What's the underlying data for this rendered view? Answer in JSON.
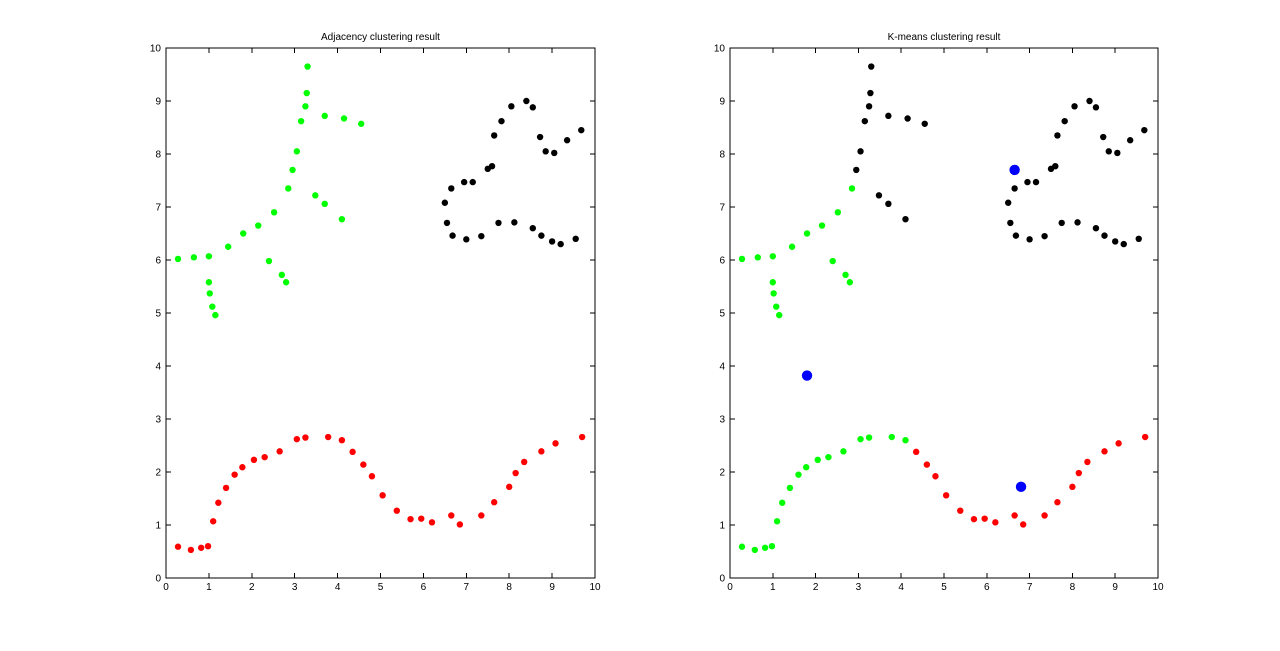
{
  "chart_data": [
    {
      "type": "scatter",
      "title": "Adjacency clustering result",
      "xlabel": "",
      "ylabel": "",
      "xlim": [
        0,
        10
      ],
      "ylim": [
        0,
        10
      ],
      "xticks": [
        0,
        1,
        2,
        3,
        4,
        5,
        6,
        7,
        8,
        9,
        10
      ],
      "yticks": [
        0,
        1,
        2,
        3,
        4,
        5,
        6,
        7,
        8,
        9,
        10
      ],
      "grid": false,
      "series": [
        {
          "color": "#00ff00",
          "marker_size": "small",
          "points": [
            [
              0.28,
              6.02
            ],
            [
              0.65,
              6.05
            ],
            [
              1.0,
              6.07
            ],
            [
              1.45,
              6.25
            ],
            [
              1.8,
              6.5
            ],
            [
              2.15,
              6.65
            ],
            [
              2.52,
              6.9
            ],
            [
              2.85,
              7.35
            ],
            [
              2.95,
              7.7
            ],
            [
              3.05,
              8.05
            ],
            [
              3.15,
              8.62
            ],
            [
              3.25,
              8.9
            ],
            [
              3.28,
              9.15
            ],
            [
              3.3,
              9.65
            ],
            [
              3.7,
              8.72
            ],
            [
              4.15,
              8.67
            ],
            [
              4.55,
              8.57
            ],
            [
              3.48,
              7.22
            ],
            [
              3.7,
              7.06
            ],
            [
              4.1,
              6.77
            ],
            [
              2.4,
              5.98
            ],
            [
              2.7,
              5.72
            ],
            [
              2.8,
              5.58
            ],
            [
              1.0,
              5.58
            ],
            [
              1.02,
              5.37
            ],
            [
              1.08,
              5.12
            ],
            [
              1.15,
              4.96
            ]
          ]
        },
        {
          "color": "#ff0000",
          "marker_size": "small",
          "points": [
            [
              0.28,
              0.59
            ],
            [
              0.58,
              0.53
            ],
            [
              0.82,
              0.57
            ],
            [
              0.98,
              0.6
            ],
            [
              1.1,
              1.07
            ],
            [
              1.22,
              1.42
            ],
            [
              1.4,
              1.7
            ],
            [
              1.6,
              1.95
            ],
            [
              1.78,
              2.09
            ],
            [
              2.05,
              2.23
            ],
            [
              2.3,
              2.28
            ],
            [
              2.65,
              2.39
            ],
            [
              3.05,
              2.62
            ],
            [
              3.25,
              2.65
            ],
            [
              3.78,
              2.66
            ],
            [
              4.1,
              2.6
            ],
            [
              4.35,
              2.38
            ],
            [
              4.6,
              2.14
            ],
            [
              4.8,
              1.92
            ],
            [
              5.05,
              1.56
            ],
            [
              5.38,
              1.27
            ],
            [
              5.7,
              1.11
            ],
            [
              5.95,
              1.12
            ],
            [
              6.2,
              1.05
            ],
            [
              6.65,
              1.18
            ],
            [
              6.85,
              1.01
            ],
            [
              7.35,
              1.18
            ],
            [
              7.65,
              1.43
            ],
            [
              8.0,
              1.72
            ],
            [
              8.15,
              1.98
            ],
            [
              8.35,
              2.19
            ],
            [
              8.75,
              2.39
            ],
            [
              9.08,
              2.54
            ],
            [
              9.7,
              2.66
            ]
          ]
        },
        {
          "color": "#000000",
          "marker_size": "small",
          "points": [
            [
              6.5,
              7.08
            ],
            [
              6.65,
              7.35
            ],
            [
              6.95,
              7.47
            ],
            [
              7.15,
              7.47
            ],
            [
              7.5,
              7.72
            ],
            [
              7.6,
              7.77
            ],
            [
              7.65,
              8.35
            ],
            [
              7.82,
              8.62
            ],
            [
              8.05,
              8.9
            ],
            [
              8.4,
              9.0
            ],
            [
              8.55,
              8.88
            ],
            [
              8.72,
              8.32
            ],
            [
              8.85,
              8.05
            ],
            [
              9.05,
              8.02
            ],
            [
              9.35,
              8.26
            ],
            [
              9.68,
              8.45
            ],
            [
              6.55,
              6.7
            ],
            [
              6.68,
              6.46
            ],
            [
              7.0,
              6.39
            ],
            [
              7.35,
              6.45
            ],
            [
              7.75,
              6.7
            ],
            [
              8.12,
              6.71
            ],
            [
              8.55,
              6.6
            ],
            [
              8.75,
              6.46
            ],
            [
              9.0,
              6.35
            ],
            [
              9.2,
              6.3
            ],
            [
              9.55,
              6.4
            ]
          ]
        }
      ]
    },
    {
      "type": "scatter",
      "title": "K-means clustering result",
      "xlabel": "",
      "ylabel": "",
      "xlim": [
        0,
        10
      ],
      "ylim": [
        0,
        10
      ],
      "xticks": [
        0,
        1,
        2,
        3,
        4,
        5,
        6,
        7,
        8,
        9,
        10
      ],
      "yticks": [
        0,
        1,
        2,
        3,
        4,
        5,
        6,
        7,
        8,
        9,
        10
      ],
      "grid": false,
      "series": [
        {
          "color": "#00ff00",
          "marker_size": "small",
          "points": [
            [
              0.28,
              6.02
            ],
            [
              0.65,
              6.05
            ],
            [
              1.0,
              6.07
            ],
            [
              1.45,
              6.25
            ],
            [
              1.8,
              6.5
            ],
            [
              2.15,
              6.65
            ],
            [
              2.52,
              6.9
            ],
            [
              2.85,
              7.35
            ],
            [
              2.4,
              5.98
            ],
            [
              2.7,
              5.72
            ],
            [
              2.8,
              5.58
            ],
            [
              1.0,
              5.58
            ],
            [
              1.02,
              5.37
            ],
            [
              1.08,
              5.12
            ],
            [
              1.15,
              4.96
            ],
            [
              0.28,
              0.59
            ],
            [
              0.58,
              0.53
            ],
            [
              0.82,
              0.57
            ],
            [
              0.98,
              0.6
            ],
            [
              1.1,
              1.07
            ],
            [
              1.22,
              1.42
            ],
            [
              1.4,
              1.7
            ],
            [
              1.6,
              1.95
            ],
            [
              1.78,
              2.09
            ],
            [
              2.05,
              2.23
            ],
            [
              2.3,
              2.28
            ],
            [
              2.65,
              2.39
            ],
            [
              3.05,
              2.62
            ],
            [
              3.25,
              2.65
            ],
            [
              3.78,
              2.66
            ],
            [
              4.1,
              2.6
            ]
          ]
        },
        {
          "color": "#ff0000",
          "marker_size": "small",
          "points": [
            [
              4.35,
              2.38
            ],
            [
              4.6,
              2.14
            ],
            [
              4.8,
              1.92
            ],
            [
              5.05,
              1.56
            ],
            [
              5.38,
              1.27
            ],
            [
              5.7,
              1.11
            ],
            [
              5.95,
              1.12
            ],
            [
              6.2,
              1.05
            ],
            [
              6.65,
              1.18
            ],
            [
              6.85,
              1.01
            ],
            [
              7.35,
              1.18
            ],
            [
              7.65,
              1.43
            ],
            [
              8.0,
              1.72
            ],
            [
              8.15,
              1.98
            ],
            [
              8.35,
              2.19
            ],
            [
              8.75,
              2.39
            ],
            [
              9.08,
              2.54
            ],
            [
              9.7,
              2.66
            ]
          ]
        },
        {
          "color": "#000000",
          "marker_size": "small",
          "points": [
            [
              2.95,
              7.7
            ],
            [
              3.05,
              8.05
            ],
            [
              3.15,
              8.62
            ],
            [
              3.25,
              8.9
            ],
            [
              3.28,
              9.15
            ],
            [
              3.3,
              9.65
            ],
            [
              3.7,
              8.72
            ],
            [
              4.15,
              8.67
            ],
            [
              4.55,
              8.57
            ],
            [
              3.48,
              7.22
            ],
            [
              3.7,
              7.06
            ],
            [
              4.1,
              6.77
            ],
            [
              6.5,
              7.08
            ],
            [
              6.65,
              7.35
            ],
            [
              6.95,
              7.47
            ],
            [
              7.15,
              7.47
            ],
            [
              7.5,
              7.72
            ],
            [
              7.6,
              7.77
            ],
            [
              7.65,
              8.35
            ],
            [
              7.82,
              8.62
            ],
            [
              8.05,
              8.9
            ],
            [
              8.4,
              9.0
            ],
            [
              8.55,
              8.88
            ],
            [
              8.72,
              8.32
            ],
            [
              8.85,
              8.05
            ],
            [
              9.05,
              8.02
            ],
            [
              9.35,
              8.26
            ],
            [
              9.68,
              8.45
            ],
            [
              6.55,
              6.7
            ],
            [
              6.68,
              6.46
            ],
            [
              7.0,
              6.39
            ],
            [
              7.35,
              6.45
            ],
            [
              7.75,
              6.7
            ],
            [
              8.12,
              6.71
            ],
            [
              8.55,
              6.6
            ],
            [
              8.75,
              6.46
            ],
            [
              9.0,
              6.35
            ],
            [
              9.2,
              6.3
            ],
            [
              9.55,
              6.4
            ]
          ]
        },
        {
          "color": "#0000ff",
          "marker_size": "large",
          "points": [
            [
              6.65,
              7.7
            ],
            [
              1.8,
              3.82
            ],
            [
              6.8,
              1.72
            ]
          ]
        }
      ]
    }
  ]
}
